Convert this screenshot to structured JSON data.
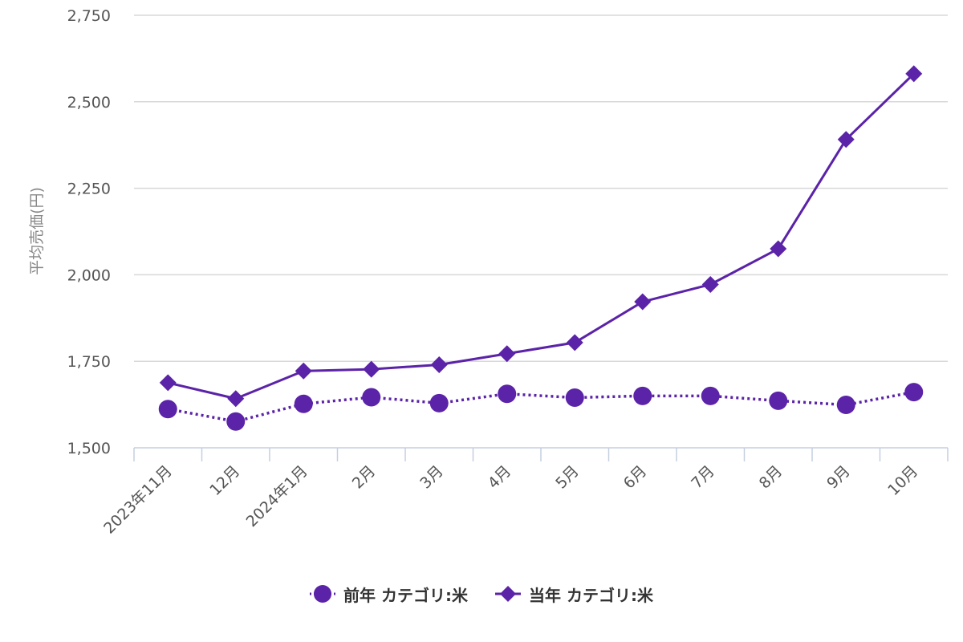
{
  "chart_data": {
    "type": "line",
    "ylabel": "平均売価(円)",
    "xlabel": "",
    "ylim": [
      1500,
      2750
    ],
    "yticks": [
      1500,
      1750,
      2000,
      2250,
      2500,
      2750
    ],
    "ytick_labels": [
      "1,500",
      "1,750",
      "2,000",
      "2,250",
      "2,500",
      "2,750"
    ],
    "categories": [
      "2023年11月",
      "12月",
      "2024年1月",
      "2月",
      "3月",
      "4月",
      "5月",
      "6月",
      "7月",
      "8月",
      "9月",
      "10月"
    ],
    "grid": true,
    "legend_position": "bottom",
    "series": [
      {
        "name": "前年 カテゴリ:米",
        "marker": "circle",
        "line_style": "dotted",
        "color": "#5b23a8",
        "values": [
          1612,
          1576,
          1627,
          1646,
          1629,
          1656,
          1645,
          1650,
          1650,
          1636,
          1624,
          1661
        ]
      },
      {
        "name": "当年 カテゴリ:米",
        "marker": "diamond",
        "line_style": "solid",
        "color": "#5b23a8",
        "values": [
          1688,
          1642,
          1722,
          1727,
          1740,
          1772,
          1804,
          1922,
          1972,
          2075,
          2391,
          2581
        ]
      }
    ]
  }
}
